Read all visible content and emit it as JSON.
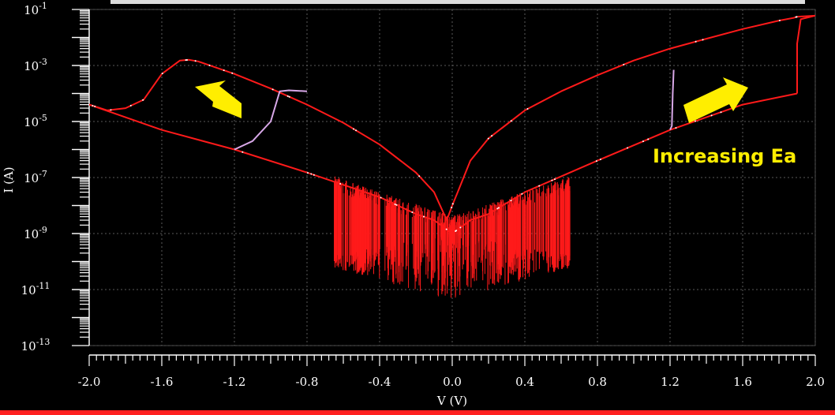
{
  "chart_data": {
    "type": "line",
    "title": "",
    "xlabel": "V (V)",
    "ylabel": "I (A)",
    "xlim": [
      -2.0,
      2.0
    ],
    "ylim": [
      1e-13,
      0.1
    ],
    "yscale": "log",
    "grid": true,
    "x_ticks": [
      {
        "value": -2.0,
        "label": "-2.0"
      },
      {
        "value": -1.6,
        "label": "-1.6"
      },
      {
        "value": -1.2,
        "label": "-1.2"
      },
      {
        "value": -0.8,
        "label": "-0.8"
      },
      {
        "value": -0.4,
        "label": "-0.4"
      },
      {
        "value": 0.0,
        "label": "0.0"
      },
      {
        "value": 0.4,
        "label": "0.4"
      },
      {
        "value": 0.8,
        "label": "0.8"
      },
      {
        "value": 1.2,
        "label": "1.2"
      },
      {
        "value": 1.6,
        "label": "1.6"
      },
      {
        "value": 2.0,
        "label": "2.0"
      }
    ],
    "y_ticks": [
      {
        "value": 0.1,
        "base": "10",
        "exp": "-1"
      },
      {
        "value": 0.001,
        "base": "10",
        "exp": "-3"
      },
      {
        "value": 1e-05,
        "base": "10",
        "exp": "-5"
      },
      {
        "value": 1e-07,
        "base": "10",
        "exp": "-7"
      },
      {
        "value": 1e-09,
        "base": "10",
        "exp": "-9"
      },
      {
        "value": 1e-11,
        "base": "10",
        "exp": "-11"
      },
      {
        "value": 1e-13,
        "base": "10",
        "exp": "-13"
      }
    ],
    "series": [
      {
        "color": "#ff1a1a",
        "x": [
          -2.0,
          -1.9,
          -1.8,
          -1.7,
          -1.6,
          -1.5,
          -1.45,
          -1.4,
          -1.2,
          -1.0,
          -0.8,
          -0.6,
          -0.4,
          -0.2,
          -0.1,
          -0.03,
          0.0,
          0.03,
          0.1,
          0.2,
          0.4,
          0.6,
          0.8,
          1.0,
          1.2,
          1.4,
          1.6,
          1.8,
          1.88,
          1.9,
          2.0
        ],
        "y": [
          4e-05,
          2.5e-05,
          3e-05,
          6e-05,
          0.0005,
          0.0015,
          0.0016,
          0.0014,
          0.0005,
          0.00015,
          4e-05,
          9e-06,
          1.5e-06,
          1.5e-07,
          3e-08,
          3e-09,
          1e-08,
          3e-08,
          4e-07,
          2.5e-06,
          2.5e-05,
          0.00012,
          0.00045,
          0.0015,
          0.004,
          0.009,
          0.02,
          0.04,
          0.05,
          0.055,
          0.06
        ]
      },
      {
        "color": "#ff1a1a",
        "x": [
          -1.2,
          -0.8,
          -0.4,
          -0.2,
          -0.1,
          0.0,
          0.1,
          0.2,
          0.4,
          0.8,
          1.2,
          1.6,
          1.9
        ],
        "y": [
          1e-06,
          1.5e-07,
          2e-08,
          5e-09,
          3e-09,
          1e-09,
          3e-09,
          5e-09,
          3e-08,
          4e-07,
          5e-06,
          4e-05,
          0.0001
        ]
      },
      {
        "color": "#ff1a1a",
        "x": [
          1.9,
          1.9,
          1.92,
          2.0
        ],
        "y": [
          0.0001,
          0.006,
          0.045,
          0.06
        ]
      },
      {
        "color": "#ff1a1a",
        "x": [
          -2.0,
          -1.6,
          -1.2
        ],
        "y": [
          4e-05,
          5e-06,
          1e-06
        ]
      },
      {
        "color": "#d8a8e8",
        "x": [
          -1.2,
          -1.1,
          -1.0,
          -0.95,
          -0.9,
          -0.8
        ],
        "y": [
          1e-06,
          2e-06,
          1e-05,
          0.00012,
          0.00013,
          0.00012
        ]
      },
      {
        "color": "#d8a8e8",
        "x": [
          1.2,
          1.21,
          1.215,
          1.22
        ],
        "y": [
          5e-06,
          7e-06,
          0.0001,
          0.0007
        ]
      }
    ],
    "annotations": [
      {
        "text": "Increasing Ea",
        "color": "#ffee00"
      }
    ]
  }
}
